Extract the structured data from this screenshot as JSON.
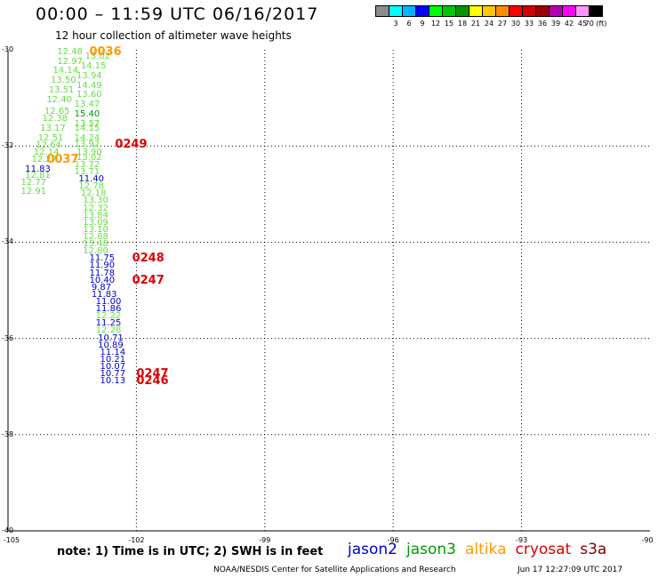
{
  "title": "00:00 – 11:59 UTC 06/16/2017",
  "subtitle": "12 hour collection of altimeter wave heights",
  "legend": {
    "colors": [
      "#8c8c8c",
      "#00ffff",
      "#00b4ff",
      "#0000ff",
      "#00ff00",
      "#00c800",
      "#009600",
      "#ffff00",
      "#ffc800",
      "#ff8c00",
      "#ff0000",
      "#d20000",
      "#a00000",
      "#b400b4",
      "#ff00ff",
      "#ff96ff",
      "#000000"
    ],
    "ticks": [
      "3",
      "6",
      "9",
      "12",
      "15",
      "18",
      "21",
      "24",
      "27",
      "30",
      "33",
      "36",
      "39",
      "42",
      "45",
      "70 (ft)"
    ]
  },
  "map": {
    "lon_range": [
      -105,
      -90
    ],
    "lat_range": [
      -40,
      -30
    ],
    "x_ticks": [
      "-105",
      "-102",
      "-99",
      "-96",
      "-93",
      "-90"
    ],
    "y_ticks": [
      "-30",
      "-32",
      "-34",
      "-36",
      "-38",
      "-40"
    ],
    "gridlines": "dotted"
  },
  "observations": [
    {
      "text": "12.48",
      "color": "#66dd44",
      "lon": -103.85,
      "lat": -30.05
    },
    {
      "text": "13.02",
      "color": "#66dd44",
      "lon": -103.2,
      "lat": -30.15
    },
    {
      "text": "12.97",
      "color": "#66dd44",
      "lon": -103.85,
      "lat": -30.25
    },
    {
      "text": "14.15",
      "color": "#66dd44",
      "lon": -103.3,
      "lat": -30.35
    },
    {
      "text": "14.14",
      "color": "#66dd44",
      "lon": -103.95,
      "lat": -30.45
    },
    {
      "text": "13.94",
      "color": "#66dd44",
      "lon": -103.4,
      "lat": -30.55
    },
    {
      "text": "13.50",
      "color": "#66dd44",
      "lon": -104.0,
      "lat": -30.65
    },
    {
      "text": "14.49",
      "color": "#66dd44",
      "lon": -103.4,
      "lat": -30.75
    },
    {
      "text": "13.51",
      "color": "#66dd44",
      "lon": -104.05,
      "lat": -30.85
    },
    {
      "text": "13.60",
      "color": "#66dd44",
      "lon": -103.4,
      "lat": -30.95
    },
    {
      "text": "12.40",
      "color": "#66dd44",
      "lon": -104.1,
      "lat": -31.05
    },
    {
      "text": "13.47",
      "color": "#66dd44",
      "lon": -103.45,
      "lat": -31.15
    },
    {
      "text": "12.65",
      "color": "#66dd44",
      "lon": -104.15,
      "lat": -31.3
    },
    {
      "text": "15.40",
      "color": "#009900",
      "lon": -103.45,
      "lat": -31.35
    },
    {
      "text": "12.38",
      "color": "#66dd44",
      "lon": -104.2,
      "lat": -31.45
    },
    {
      "text": "13.57",
      "color": "#66dd44",
      "lon": -103.45,
      "lat": -31.55
    },
    {
      "text": "13.17",
      "color": "#66dd44",
      "lon": -104.25,
      "lat": -31.65
    },
    {
      "text": "14.15",
      "color": "#66dd44",
      "lon": -103.45,
      "lat": -31.65
    },
    {
      "text": "12.51",
      "color": "#66dd44",
      "lon": -104.3,
      "lat": -31.85
    },
    {
      "text": "14.24",
      "color": "#66dd44",
      "lon": -103.45,
      "lat": -31.85
    },
    {
      "text": "12.64",
      "color": "#66dd44",
      "lon": -104.35,
      "lat": -32.0
    },
    {
      "text": "13.92",
      "color": "#66dd44",
      "lon": -103.45,
      "lat": -31.98
    },
    {
      "text": "13.90",
      "color": "#66dd44",
      "lon": -103.4,
      "lat": -32.15
    },
    {
      "text": "12.14",
      "color": "#66dd44",
      "lon": -104.4,
      "lat": -32.15
    },
    {
      "text": "13.02",
      "color": "#66dd44",
      "lon": -103.4,
      "lat": -32.25
    },
    {
      "text": "12.27",
      "color": "#66dd44",
      "lon": -104.45,
      "lat": -32.3
    },
    {
      "text": "13.72",
      "color": "#66dd44",
      "lon": -103.45,
      "lat": -32.4
    },
    {
      "text": "11.83",
      "color": "#0000cc",
      "lon": -104.6,
      "lat": -32.5
    },
    {
      "text": "13.71",
      "color": "#66dd44",
      "lon": -103.45,
      "lat": -32.55
    },
    {
      "text": "12.81",
      "color": "#66dd44",
      "lon": -104.6,
      "lat": -32.63
    },
    {
      "text": "11.40",
      "color": "#0000cc",
      "lon": -103.35,
      "lat": -32.7
    },
    {
      "text": "12.77",
      "color": "#66dd44",
      "lon": -104.7,
      "lat": -32.78
    },
    {
      "text": "12.78",
      "color": "#66dd44",
      "lon": -103.35,
      "lat": -32.85
    },
    {
      "text": "12.91",
      "color": "#66dd44",
      "lon": -104.7,
      "lat": -32.95
    },
    {
      "text": "12.18",
      "color": "#66dd44",
      "lon": -103.3,
      "lat": -33.0
    },
    {
      "text": "13.30",
      "color": "#66dd44",
      "lon": -103.25,
      "lat": -33.15
    },
    {
      "text": "12.32",
      "color": "#66dd44",
      "lon": -103.25,
      "lat": -33.3
    },
    {
      "text": "13.84",
      "color": "#66dd44",
      "lon": -103.25,
      "lat": -33.45
    },
    {
      "text": "13.09",
      "color": "#66dd44",
      "lon": -103.25,
      "lat": -33.6
    },
    {
      "text": "13.10",
      "color": "#66dd44",
      "lon": -103.25,
      "lat": -33.75
    },
    {
      "text": "12.88",
      "color": "#66dd44",
      "lon": -103.25,
      "lat": -33.9
    },
    {
      "text": "13.48",
      "color": "#66dd44",
      "lon": -103.25,
      "lat": -34.05
    },
    {
      "text": "12.80",
      "color": "#66dd44",
      "lon": -103.25,
      "lat": -34.2
    },
    {
      "text": "11.75",
      "color": "#0000cc",
      "lon": -103.1,
      "lat": -34.35
    },
    {
      "text": "11.90",
      "color": "#0000cc",
      "lon": -103.1,
      "lat": -34.5
    },
    {
      "text": "11.78",
      "color": "#0000cc",
      "lon": -103.1,
      "lat": -34.65
    },
    {
      "text": "10.40",
      "color": "#0000cc",
      "lon": -103.1,
      "lat": -34.8
    },
    {
      "text": "9.87",
      "color": "#0000cc",
      "lon": -103.05,
      "lat": -34.95
    },
    {
      "text": "11.83",
      "color": "#0000cc",
      "lon": -103.05,
      "lat": -35.1
    },
    {
      "text": "11.00",
      "color": "#0000cc",
      "lon": -102.95,
      "lat": -35.25
    },
    {
      "text": "11.86",
      "color": "#0000cc",
      "lon": -102.95,
      "lat": -35.4
    },
    {
      "text": "12.22",
      "color": "#66dd44",
      "lon": -102.95,
      "lat": -35.55
    },
    {
      "text": "11.25",
      "color": "#0000cc",
      "lon": -102.95,
      "lat": -35.7
    },
    {
      "text": "12.28",
      "color": "#66dd44",
      "lon": -102.95,
      "lat": -35.85
    },
    {
      "text": "10.71",
      "color": "#0000cc",
      "lon": -102.9,
      "lat": -36.0
    },
    {
      "text": "10.89",
      "color": "#0000cc",
      "lon": -102.9,
      "lat": -36.15
    },
    {
      "text": "11.14",
      "color": "#0000cc",
      "lon": -102.85,
      "lat": -36.3
    },
    {
      "text": "10.21",
      "color": "#0000cc",
      "lon": -102.85,
      "lat": -36.45
    },
    {
      "text": "10.07",
      "color": "#0000cc",
      "lon": -102.85,
      "lat": -36.6
    },
    {
      "text": "10.77",
      "color": "#0000cc",
      "lon": -102.85,
      "lat": -36.75
    },
    {
      "text": "10.13",
      "color": "#0000cc",
      "lon": -102.85,
      "lat": -36.9
    }
  ],
  "passes": [
    {
      "text": "0036",
      "color": "#ff9900",
      "lon": -103.1,
      "lat": -30.05
    },
    {
      "text": "0249",
      "color": "#dd0000",
      "lon": -102.5,
      "lat": -31.98
    },
    {
      "text": "0037",
      "color": "#ff9900",
      "lon": -104.1,
      "lat": -32.3
    },
    {
      "text": "0248",
      "color": "#dd0000",
      "lon": -102.1,
      "lat": -34.35
    },
    {
      "text": "0247",
      "color": "#dd0000",
      "lon": -102.1,
      "lat": -34.8
    },
    {
      "text": "0247",
      "color": "#dd0000",
      "lon": -102.0,
      "lat": -36.75
    },
    {
      "text": "0246",
      "color": "#dd0000",
      "lon": -102.0,
      "lat": -36.9
    }
  ],
  "note": "note:  1) Time is in UTC;  2) SWH is in feet",
  "satellites": [
    {
      "name": "jason2",
      "color": "#0000cc"
    },
    {
      "name": "jason3",
      "color": "#009900"
    },
    {
      "name": "altika",
      "color": "#ff9900"
    },
    {
      "name": "cryosat",
      "color": "#dd0000"
    },
    {
      "name": "s3a",
      "color": "#800000"
    }
  ],
  "credit": "NOAA/NESDIS Center for Satellite Applications and Research",
  "timestamp": "Jun 17 12:27:09 UTC 2017"
}
